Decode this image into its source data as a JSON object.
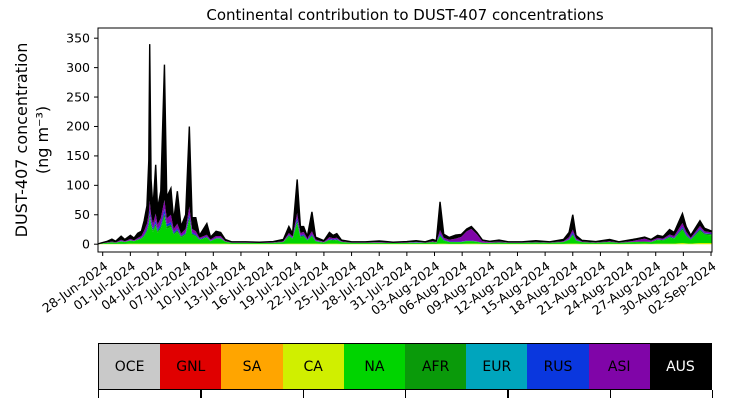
{
  "title": "Continental contribution to DUST-407 concentrations",
  "y_axis": {
    "label_line1": "DUST-407 concentration",
    "label_line2": "(ng m⁻³)",
    "ticks": [
      0,
      50,
      100,
      150,
      200,
      250,
      300,
      350
    ]
  },
  "x_axis": {
    "ticks": [
      {
        "d": 0,
        "label": "28-Jun-2024"
      },
      {
        "d": 3,
        "label": "01-Jul-2024"
      },
      {
        "d": 6,
        "label": "04-Jul-2024"
      },
      {
        "d": 9,
        "label": "07-Jul-2024"
      },
      {
        "d": 12,
        "label": "10-Jul-2024"
      },
      {
        "d": 15,
        "label": "13-Jul-2024"
      },
      {
        "d": 18,
        "label": "16-Jul-2024"
      },
      {
        "d": 21,
        "label": "19-Jul-2024"
      },
      {
        "d": 24,
        "label": "22-Jul-2024"
      },
      {
        "d": 27,
        "label": "25-Jul-2024"
      },
      {
        "d": 30,
        "label": "28-Jul-2024"
      },
      {
        "d": 33,
        "label": "31-Jul-2024"
      },
      {
        "d": 36,
        "label": "03-Aug-2024"
      },
      {
        "d": 39,
        "label": "06-Aug-2024"
      },
      {
        "d": 42,
        "label": "09-Aug-2024"
      },
      {
        "d": 45,
        "label": "12-Aug-2024"
      },
      {
        "d": 48,
        "label": "15-Aug-2024"
      },
      {
        "d": 51,
        "label": "18-Aug-2024"
      },
      {
        "d": 54,
        "label": "21-Aug-2024"
      },
      {
        "d": 57,
        "label": "24-Aug-2024"
      },
      {
        "d": 60,
        "label": "27-Aug-2024"
      },
      {
        "d": 63,
        "label": "30-Aug-2024"
      },
      {
        "d": 66,
        "label": "02-Sep-2024"
      }
    ]
  },
  "legend": {
    "items": [
      {
        "label": "OCE",
        "color": "#c9c9c9",
        "text_color": "#000000"
      },
      {
        "label": "GNL",
        "color": "#e00000",
        "text_color": "#000000"
      },
      {
        "label": "SA",
        "color": "#ffa500",
        "text_color": "#000000"
      },
      {
        "label": "CA",
        "color": "#d0ef00",
        "text_color": "#000000"
      },
      {
        "label": "NA",
        "color": "#00d400",
        "text_color": "#000000"
      },
      {
        "label": "AFR",
        "color": "#0a9a0a",
        "text_color": "#000000"
      },
      {
        "label": "EUR",
        "color": "#00a5bd",
        "text_color": "#000000"
      },
      {
        "label": "RUS",
        "color": "#0a37de",
        "text_color": "#000000"
      },
      {
        "label": "ASI",
        "color": "#8005a8",
        "text_color": "#000000"
      },
      {
        "label": "AUS",
        "color": "#000000",
        "text_color": "#ffffff"
      }
    ]
  },
  "chart_data": {
    "type": "area",
    "stacked": true,
    "title": "Continental contribution to DUST-407 concentrations",
    "ylabel": "DUST-407 concentration (ng m⁻³)",
    "xlabel": "",
    "x_unit": "days since 28-Jun-2024",
    "ylim": [
      -16,
      367
    ],
    "outline_color": "#000000",
    "series_order": [
      "OCE",
      "GNL",
      "SA",
      "CA",
      "NA",
      "AFR",
      "EUR",
      "RUS",
      "ASI",
      "AUS"
    ],
    "colors": {
      "OCE": "#c9c9c9",
      "GNL": "#e00000",
      "SA": "#ffa500",
      "CA": "#d0ef00",
      "NA": "#00d400",
      "AFR": "#0a9a0a",
      "EUR": "#00a5bd",
      "RUS": "#0a37de",
      "ASI": "#8005a8",
      "AUS": "#000000"
    },
    "points": [
      {
        "d": -0.6
      },
      {
        "d": -0.2,
        "CA": 0.5,
        "NA": 1,
        "AUS": 0.5
      },
      {
        "d": 0.5,
        "CA": 0.5,
        "NA": 2,
        "ASI": 0.5,
        "AUS": 2
      },
      {
        "d": 1.0,
        "CA": 0.5,
        "NA": 3,
        "ASI": 1,
        "AUS": 4
      },
      {
        "d": 1.4,
        "CA": 0.5,
        "NA": 2,
        "ASI": 0.5,
        "AUS": 2
      },
      {
        "d": 2.0,
        "CA": 0.5,
        "NA": 4,
        "AFR": 0.5,
        "RUS": 0.5,
        "ASI": 2,
        "AUS": 6
      },
      {
        "d": 2.4,
        "CA": 0.5,
        "NA": 3,
        "AFR": 0.5,
        "ASI": 1,
        "AUS": 3
      },
      {
        "d": 3.0,
        "CA": 1,
        "NA": 5,
        "AFR": 0.5,
        "RUS": 0.5,
        "ASI": 2,
        "AUS": 6
      },
      {
        "d": 3.4,
        "CA": 1,
        "NA": 4,
        "AFR": 0.5,
        "ASI": 1,
        "AUS": 4
      },
      {
        "d": 3.8,
        "CA": 1,
        "NA": 6,
        "AFR": 1,
        "RUS": 0.5,
        "ASI": 2,
        "AUS": 8
      },
      {
        "d": 4.2,
        "CA": 1,
        "NA": 8,
        "AFR": 1,
        "RUS": 1,
        "ASI": 3,
        "AUS": 8
      },
      {
        "d": 4.5,
        "CA": 1,
        "NA": 12,
        "AFR": 2,
        "RUS": 2,
        "ASI": 6,
        "AUS": 17
      },
      {
        "d": 4.8,
        "CA": 1,
        "NA": 20,
        "AFR": 3,
        "RUS": 3,
        "ASI": 8,
        "AUS": 30
      },
      {
        "d": 5.0,
        "CA": 1,
        "NA": 30,
        "AFR": 4,
        "RUS": 5,
        "ASI": 12,
        "AUS": 90
      },
      {
        "d": 5.1,
        "CA": 1,
        "NA": 45,
        "AFR": 5,
        "RUS": 8,
        "ASI": 15,
        "AUS": 266
      },
      {
        "d": 5.25,
        "CA": 1,
        "NA": 30,
        "AFR": 4,
        "RUS": 5,
        "ASI": 10,
        "AUS": 60
      },
      {
        "d": 5.45,
        "CA": 1,
        "NA": 20,
        "AFR": 3,
        "RUS": 3,
        "ASI": 8,
        "AUS": 25
      },
      {
        "d": 5.75,
        "CA": 1,
        "NA": 30,
        "AFR": 4,
        "RUS": 5,
        "ASI": 12,
        "AUS": 83
      },
      {
        "d": 5.95,
        "CA": 1,
        "NA": 18,
        "AFR": 3,
        "RUS": 3,
        "ASI": 8,
        "AUS": 27
      },
      {
        "d": 6.3,
        "CA": 1,
        "NA": 25,
        "AFR": 4,
        "RUS": 4,
        "ASI": 10,
        "AUS": 46
      },
      {
        "d": 6.7,
        "CA": 1,
        "NA": 45,
        "AFR": 6,
        "RUS": 8,
        "ASI": 15,
        "AUS": 230
      },
      {
        "d": 6.95,
        "CA": 1,
        "NA": 25,
        "AFR": 4,
        "RUS": 4,
        "ASI": 10,
        "AUS": 36
      },
      {
        "d": 7.4,
        "CA": 1,
        "NA": 28,
        "AFR": 4,
        "RUS": 5,
        "ASI": 12,
        "AUS": 45
      },
      {
        "d": 7.7,
        "CA": 1,
        "NA": 15,
        "AFR": 2,
        "RUS": 2,
        "ASI": 6,
        "AUS": 14
      },
      {
        "d": 8.1,
        "CA": 1,
        "NA": 20,
        "AFR": 3,
        "RUS": 3,
        "ASI": 8,
        "AUS": 55
      },
      {
        "d": 8.5,
        "CA": 1,
        "NA": 10,
        "AFR": 2,
        "RUS": 1,
        "ASI": 4,
        "AUS": 12
      },
      {
        "d": 9.0,
        "CA": 1,
        "NA": 15,
        "AFR": 2,
        "RUS": 2,
        "ASI": 6,
        "AUS": 24
      },
      {
        "d": 9.4,
        "CA": 1,
        "NA": 40,
        "AFR": 5,
        "RUS": 6,
        "ASI": 12,
        "AUS": 136
      },
      {
        "d": 9.7,
        "CA": 1,
        "NA": 15,
        "AFR": 2,
        "RUS": 2,
        "ASI": 6,
        "AUS": 19
      },
      {
        "d": 10.1,
        "CA": 1,
        "NA": 12,
        "AFR": 2,
        "RUS": 2,
        "ASI": 5,
        "AUS": 23
      },
      {
        "d": 10.5,
        "CA": 1,
        "NA": 6,
        "AFR": 1,
        "RUS": 1,
        "ASI": 2,
        "AUS": 4
      },
      {
        "d": 11.3,
        "CA": 1,
        "NA": 10,
        "AFR": 1,
        "RUS": 1,
        "ASI": 3,
        "AUS": 19
      },
      {
        "d": 11.7,
        "CA": 1,
        "NA": 4,
        "AFR": 0.5,
        "RUS": 0.5,
        "ASI": 2,
        "AUS": 4
      },
      {
        "d": 12.3,
        "CA": 1,
        "NA": 8,
        "AFR": 1,
        "RUS": 1,
        "ASI": 3,
        "AUS": 8
      },
      {
        "d": 12.8,
        "CA": 1,
        "NA": 8,
        "AFR": 1,
        "RUS": 1,
        "ASI": 3,
        "AUS": 6
      },
      {
        "d": 13.3,
        "CA": 1,
        "NA": 3,
        "AFR": 0.5,
        "ASI": 1,
        "AUS": 2.5
      },
      {
        "d": 14.0,
        "CA": 0.5,
        "NA": 2,
        "ASI": 0.5,
        "AUS": 1
      },
      {
        "d": 15.5,
        "CA": 0.5,
        "NA": 2,
        "ASI": 0.5,
        "AUS": 1
      },
      {
        "d": 17.0,
        "CA": 0.5,
        "NA": 1.5,
        "ASI": 0.5,
        "AUS": 1
      },
      {
        "d": 18.5,
        "CA": 0.5,
        "NA": 2,
        "ASI": 0.5,
        "AUS": 1.5
      },
      {
        "d": 19.6,
        "CA": 0.5,
        "NA": 3,
        "AFR": 0.5,
        "ASI": 1,
        "AUS": 3
      },
      {
        "d": 20.2,
        "CA": 1,
        "NA": 12,
        "AFR": 2,
        "RUS": 1,
        "ASI": 3,
        "AUS": 11
      },
      {
        "d": 20.6,
        "CA": 1,
        "NA": 8,
        "AFR": 1,
        "RUS": 1,
        "ASI": 2,
        "AUS": 5
      },
      {
        "d": 21.1,
        "CA": 1,
        "NA": 35,
        "AFR": 4,
        "RUS": 5,
        "ASI": 8,
        "AUS": 57
      },
      {
        "d": 21.45,
        "CA": 1,
        "NA": 10,
        "AFR": 2,
        "RUS": 2,
        "ASI": 4,
        "AUS": 11
      },
      {
        "d": 21.8,
        "CA": 1,
        "NA": 12,
        "AFR": 2,
        "RUS": 2,
        "ASI": 4,
        "AUS": 9
      },
      {
        "d": 22.2,
        "CA": 1,
        "NA": 5,
        "AFR": 1,
        "RUS": 1,
        "ASI": 2,
        "AUS": 3
      },
      {
        "d": 22.7,
        "CA": 1,
        "NA": 12,
        "AFR": 2,
        "RUS": 2,
        "ASI": 5,
        "AUS": 33
      },
      {
        "d": 23.1,
        "CA": 1,
        "NA": 4,
        "AFR": 0.5,
        "RUS": 0.5,
        "ASI": 2,
        "AUS": 4
      },
      {
        "d": 24.0,
        "CA": 0.5,
        "NA": 2,
        "AFR": 0.5,
        "ASI": 1,
        "AUS": 2
      },
      {
        "d": 24.6,
        "CA": 1,
        "NA": 6,
        "AFR": 1,
        "RUS": 1,
        "ASI": 3,
        "AUS": 8
      },
      {
        "d": 25.0,
        "CA": 1,
        "NA": 5,
        "AFR": 1,
        "RUS": 1,
        "ASI": 2,
        "AUS": 5
      },
      {
        "d": 25.4,
        "CA": 1,
        "NA": 6,
        "AFR": 1,
        "RUS": 1,
        "ASI": 2,
        "AUS": 7
      },
      {
        "d": 25.9,
        "CA": 0.5,
        "NA": 3,
        "AFR": 0.5,
        "ASI": 1,
        "AUS": 2
      },
      {
        "d": 27.0,
        "CA": 0.5,
        "NA": 2,
        "ASI": 0.5,
        "AUS": 1
      },
      {
        "d": 28.5,
        "CA": 0.5,
        "NA": 2,
        "ASI": 0.5,
        "AUS": 1
      },
      {
        "d": 30.0,
        "CA": 0.5,
        "NA": 2,
        "ASI": 1,
        "AUS": 2
      },
      {
        "d": 31.5,
        "CA": 0.5,
        "NA": 1.5,
        "ASI": 0.5,
        "AUS": 1
      },
      {
        "d": 33.0,
        "CA": 0.5,
        "NA": 2,
        "ASI": 0.5,
        "AUS": 1.5
      },
      {
        "d": 34.0,
        "CA": 0.5,
        "NA": 2,
        "EUR": 0.5,
        "ASI": 1,
        "AUS": 2
      },
      {
        "d": 35.0,
        "CA": 0.5,
        "NA": 2,
        "ASI": 0.5,
        "AUS": 1
      },
      {
        "d": 35.8,
        "CA": 0.5,
        "NA": 3,
        "AFR": 0.5,
        "ASI": 1,
        "AUS": 3
      },
      {
        "d": 36.2,
        "CA": 0.5,
        "NA": 2,
        "AFR": 0.5,
        "ASI": 1,
        "AUS": 2
      },
      {
        "d": 36.6,
        "CA": 1,
        "NA": 12,
        "AFR": 2,
        "RUS": 3,
        "ASI": 6,
        "AUS": 48
      },
      {
        "d": 37.0,
        "CA": 1,
        "NA": 5,
        "AFR": 1,
        "RUS": 1,
        "ASI": 3,
        "AUS": 6
      },
      {
        "d": 37.6,
        "CA": 0.5,
        "NA": 3,
        "AFR": 0.5,
        "RUS": 0.5,
        "ASI": 3,
        "AUS": 4
      },
      {
        "d": 38.3,
        "CA": 0.5,
        "NA": 3,
        "AFR": 0.5,
        "RUS": 0.5,
        "ASI": 5,
        "AUS": 6
      },
      {
        "d": 38.9,
        "CA": 0.5,
        "NA": 3,
        "AFR": 0.5,
        "RUS": 0.5,
        "ASI": 8,
        "AUS": 4
      },
      {
        "d": 39.5,
        "CA": 1,
        "NA": 4,
        "AFR": 0.5,
        "RUS": 0.5,
        "ASI": 16,
        "AUS": 4
      },
      {
        "d": 40.0,
        "CA": 1,
        "NA": 4,
        "AFR": 0.5,
        "RUS": 0.5,
        "ASI": 20,
        "AUS": 4
      },
      {
        "d": 40.6,
        "CA": 1,
        "NA": 3,
        "AFR": 0.5,
        "RUS": 0.5,
        "ASI": 12,
        "AUS": 3
      },
      {
        "d": 41.2,
        "CA": 0.5,
        "NA": 2,
        "ASI": 3,
        "AUS": 1.5
      },
      {
        "d": 42.0,
        "CA": 0.5,
        "NA": 2,
        "ASI": 1,
        "AUS": 1.5
      },
      {
        "d": 43.0,
        "CA": 0.5,
        "NA": 2.5,
        "ASI": 1.5,
        "AUS": 2.5
      },
      {
        "d": 44.0,
        "CA": 0.5,
        "NA": 2,
        "ASI": 0.5,
        "AUS": 1
      },
      {
        "d": 45.5,
        "CA": 0.5,
        "NA": 2,
        "ASI": 0.5,
        "AUS": 1
      },
      {
        "d": 47.0,
        "CA": 0.5,
        "NA": 2.5,
        "ASI": 1,
        "AUS": 2
      },
      {
        "d": 48.5,
        "CA": 0.5,
        "NA": 2,
        "ASI": 0.5,
        "AUS": 1
      },
      {
        "d": 50.0,
        "CA": 0.5,
        "NA": 3,
        "AFR": 0.5,
        "ASI": 1,
        "AUS": 3
      },
      {
        "d": 50.6,
        "CA": 1,
        "NA": 6,
        "AFR": 1,
        "RUS": 1,
        "ASI": 3,
        "AUS": 8
      },
      {
        "d": 51.0,
        "CA": 1,
        "NA": 14,
        "AFR": 2,
        "RUS": 3,
        "ASI": 5,
        "AUS": 25
      },
      {
        "d": 51.35,
        "CA": 1,
        "NA": 5,
        "AFR": 1,
        "RUS": 1,
        "ASI": 2,
        "AUS": 5
      },
      {
        "d": 52.0,
        "CA": 0.5,
        "NA": 3,
        "ASI": 1,
        "AUS": 2
      },
      {
        "d": 53.5,
        "CA": 0.5,
        "NA": 2,
        "ASI": 0.5,
        "AUS": 1.5
      },
      {
        "d": 55.0,
        "CA": 0.5,
        "NA": 3,
        "AFR": 0.5,
        "ASI": 1,
        "AUS": 3
      },
      {
        "d": 56.0,
        "CA": 0.5,
        "NA": 2,
        "ASI": 0.5,
        "AUS": 1
      },
      {
        "d": 57.5,
        "CA": 0.5,
        "NA": 3,
        "AFR": 0.5,
        "ASI": 1.5,
        "AUS": 2.5
      },
      {
        "d": 58.8,
        "CA": 1,
        "NA": 3,
        "AFR": 0.5,
        "ASI": 5,
        "AUS": 2.5
      },
      {
        "d": 59.5,
        "CA": 0.5,
        "NA": 3,
        "AFR": 0.5,
        "ASI": 2,
        "AUS": 2
      },
      {
        "d": 60.2,
        "CA": 1,
        "NA": 6,
        "AFR": 1,
        "RUS": 0.5,
        "ASI": 2,
        "AUS": 4.5
      },
      {
        "d": 60.8,
        "CA": 1,
        "NA": 5,
        "AFR": 1,
        "RUS": 0.5,
        "ASI": 2,
        "AUS": 3.5
      },
      {
        "d": 61.5,
        "CA": 1,
        "NA": 10,
        "AFR": 1.5,
        "RUS": 1,
        "ASI": 3,
        "AUS": 8.5
      },
      {
        "d": 62.0,
        "CA": 1,
        "NA": 8,
        "AFR": 1,
        "RUS": 1,
        "ASI": 3,
        "AUS": 6
      },
      {
        "d": 62.9,
        "CA": 2,
        "NA": 22,
        "AFR": 3,
        "RUS": 3,
        "ASI": 6,
        "AUS": 16
      },
      {
        "d": 63.3,
        "CA": 1.5,
        "NA": 12,
        "AFR": 2,
        "RUS": 2,
        "ASI": 4,
        "AUS": 8.5
      },
      {
        "d": 63.8,
        "CA": 1,
        "NA": 6,
        "AFR": 1,
        "RUS": 1,
        "ASI": 2,
        "AUS": 4
      },
      {
        "d": 64.8,
        "CA": 2,
        "NA": 20,
        "AFR": 3,
        "RUS": 2,
        "ASI": 4,
        "AUS": 9
      },
      {
        "d": 65.3,
        "CA": 2,
        "NA": 14,
        "AFR": 2,
        "RUS": 1,
        "ASI": 3,
        "AUS": 5
      },
      {
        "d": 66.1,
        "CA": 2,
        "NA": 13,
        "AFR": 2,
        "RUS": 1,
        "ASI": 2,
        "AUS": 2
      }
    ]
  }
}
